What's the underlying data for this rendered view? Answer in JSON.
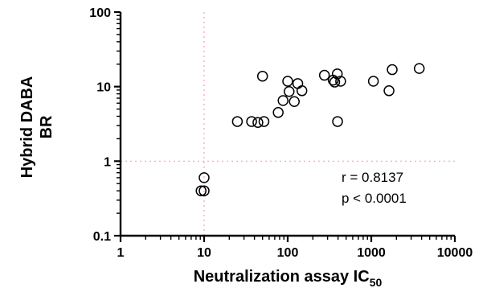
{
  "chart_data": {
    "type": "scatter",
    "xlabel": "Neutralization assay IC",
    "xlabel_subscript": "50",
    "ylabel_lines": [
      "Hybrid DABA",
      "BR"
    ],
    "x_scale": "log",
    "y_scale": "log",
    "xlim": [
      1,
      10000
    ],
    "ylim": [
      0.1,
      100
    ],
    "x_ticks": [
      1,
      10,
      100,
      1000,
      10000
    ],
    "x_tick_labels": [
      "1",
      "10",
      "100",
      "1000",
      "10000"
    ],
    "y_ticks": [
      0.1,
      1,
      10,
      100
    ],
    "y_tick_labels": [
      "0.1",
      "1",
      "10",
      "100"
    ],
    "reference_lines": {
      "x": 10,
      "y": 1,
      "color": "#f2a0b6",
      "style": "dotted"
    },
    "annotations": [
      "r = 0.8137",
      "p < 0.0001"
    ],
    "grid": false,
    "marker": "open-circle",
    "points": [
      {
        "x": 9.2,
        "y": 0.4
      },
      {
        "x": 10.0,
        "y": 0.4
      },
      {
        "x": 10.0,
        "y": 0.6
      },
      {
        "x": 25,
        "y": 3.4
      },
      {
        "x": 37,
        "y": 3.4
      },
      {
        "x": 44,
        "y": 3.3
      },
      {
        "x": 52,
        "y": 3.4
      },
      {
        "x": 50,
        "y": 13.8
      },
      {
        "x": 77,
        "y": 4.5
      },
      {
        "x": 88,
        "y": 6.5
      },
      {
        "x": 100,
        "y": 11.8
      },
      {
        "x": 104,
        "y": 8.6
      },
      {
        "x": 120,
        "y": 6.3
      },
      {
        "x": 132,
        "y": 11.0
      },
      {
        "x": 148,
        "y": 8.8
      },
      {
        "x": 275,
        "y": 14.2
      },
      {
        "x": 350,
        "y": 12.2
      },
      {
        "x": 365,
        "y": 11.5
      },
      {
        "x": 392,
        "y": 14.8
      },
      {
        "x": 395,
        "y": 3.4
      },
      {
        "x": 430,
        "y": 11.8
      },
      {
        "x": 1060,
        "y": 11.8
      },
      {
        "x": 1630,
        "y": 8.8
      },
      {
        "x": 1780,
        "y": 16.9
      },
      {
        "x": 3750,
        "y": 17.5
      }
    ]
  }
}
